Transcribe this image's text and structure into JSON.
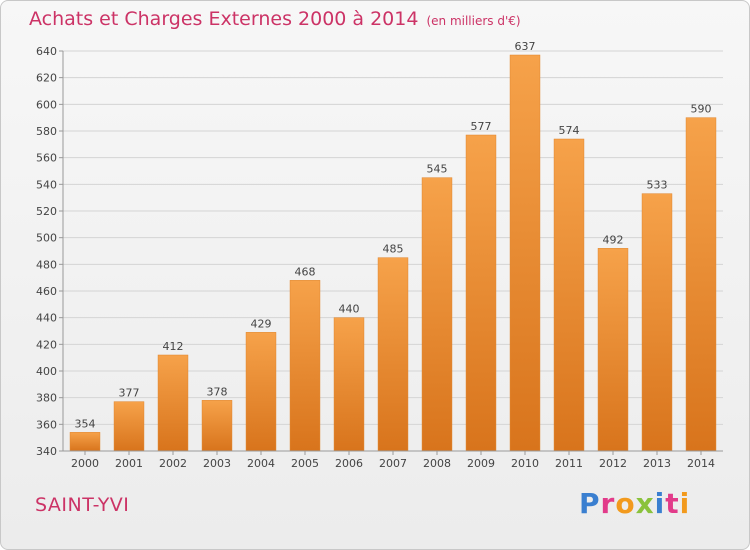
{
  "header": {
    "title": "Achats et Charges Externes 2000 à 2014",
    "unit": "(en milliers d'€)"
  },
  "footer": {
    "place": "SAINT-YVI",
    "logo_letters": [
      "P",
      "r",
      "o",
      "x",
      "i",
      "t",
      "i"
    ],
    "logo_colors": [
      "#3a7fd0",
      "#e23b8a",
      "#f29a1d",
      "#8ac23c",
      "#3a7fd0",
      "#e23b8a",
      "#f29a1d"
    ]
  },
  "chart_data": {
    "type": "bar",
    "categories": [
      "2000",
      "2001",
      "2002",
      "2003",
      "2004",
      "2005",
      "2006",
      "2007",
      "2008",
      "2009",
      "2010",
      "2011",
      "2012",
      "2013",
      "2014"
    ],
    "values": [
      354,
      377,
      412,
      378,
      429,
      468,
      440,
      485,
      545,
      577,
      637,
      574,
      492,
      533,
      590
    ],
    "ylim": [
      340,
      640
    ],
    "yticks": [
      340,
      360,
      380,
      400,
      420,
      440,
      460,
      480,
      500,
      520,
      540,
      560,
      580,
      600,
      620,
      640
    ],
    "grid": true,
    "bar_color": "#f09838",
    "title": "Achats et Charges Externes 2000 à 2014",
    "xlabel": "",
    "ylabel": ""
  }
}
